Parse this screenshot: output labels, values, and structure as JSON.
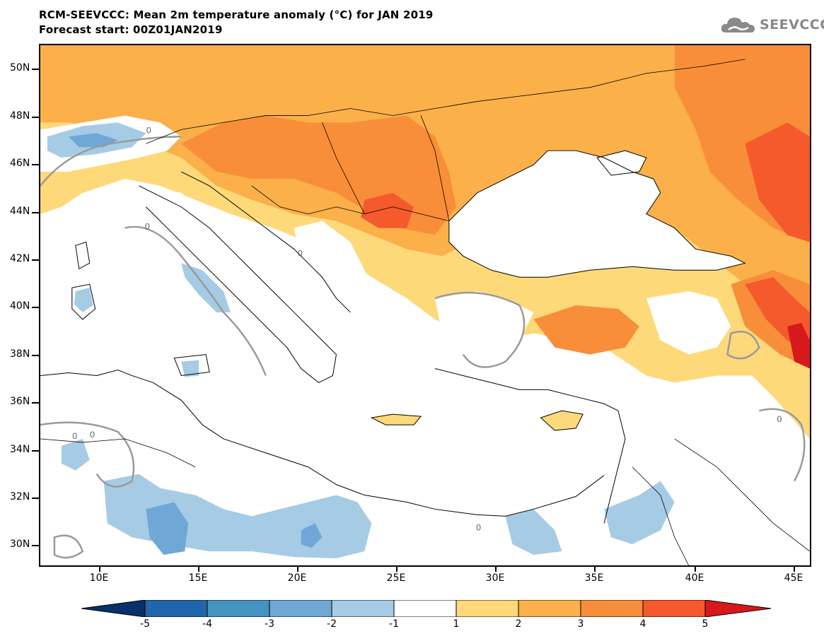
{
  "title": "RCM-SEEVCCC: Mean 2m temperature anomaly (°C) for JAN 2019",
  "subtitle": "Forecast start: 00Z01JAN2019",
  "logo_text": "SEEVCCC",
  "lat_labels": [
    "50N",
    "48N",
    "46N",
    "44N",
    "42N",
    "40N",
    "38N",
    "36N",
    "34N",
    "32N",
    "30N"
  ],
  "lon_labels": [
    "10E",
    "15E",
    "20E",
    "25E",
    "30E",
    "35E",
    "40E",
    "45E"
  ],
  "contour_label": "0",
  "colorbar": {
    "labels": [
      "-5",
      "-4",
      "-3",
      "-2",
      "-1",
      "1",
      "2",
      "3",
      "4",
      "5"
    ],
    "colors": [
      "#08306b",
      "#2166ac",
      "#4393c3",
      "#6fa8d6",
      "#a6cbe5",
      "#ffffff",
      "#fdd97a",
      "#fbb04a",
      "#f98e3a",
      "#f45a2b",
      "#d7191c"
    ]
  }
}
